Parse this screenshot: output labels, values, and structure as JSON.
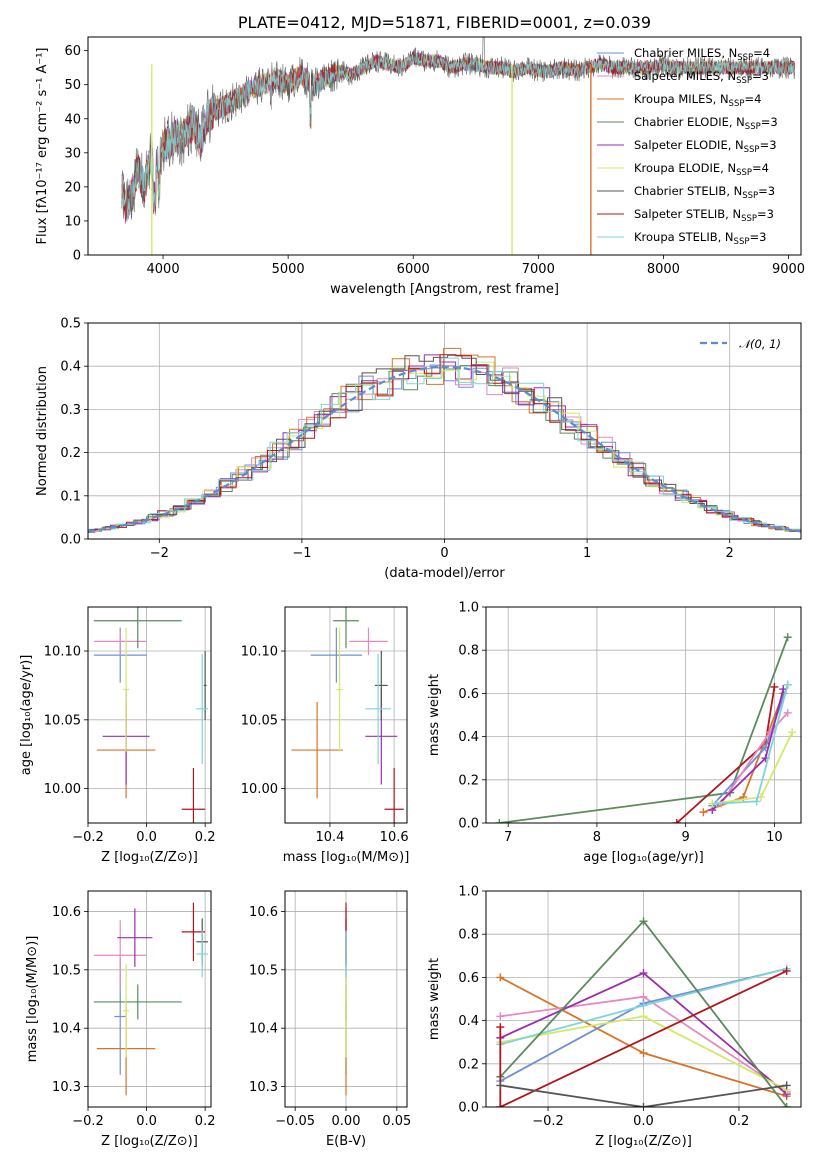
{
  "colors": {
    "Chabrier MILES": "#6f8fd8",
    "Salpeter MILES": "#e58ac0",
    "Kroupa MILES": "#d9732a",
    "Chabrier ELODIE": "#5b8a5c",
    "Salpeter ELODIE": "#9a2db0",
    "Kroupa ELODIE": "#d4e86a",
    "Chabrier STELIB": "#555555",
    "Salpeter STELIB": "#b3151c",
    "Kroupa STELIB": "#7fd4d8"
  },
  "model_order": [
    "Chabrier MILES",
    "Salpeter MILES",
    "Kroupa MILES",
    "Chabrier ELODIE",
    "Salpeter ELODIE",
    "Kroupa ELODIE",
    "Chabrier STELIB",
    "Salpeter STELIB",
    "Kroupa STELIB"
  ],
  "chart_data": [
    {
      "id": "spectrum",
      "type": "line",
      "title": "PLATE=0412, MJD=51871, FIBERID=0001, z=0.039",
      "xlabel": "wavelength [Angstrom, rest frame]",
      "ylabel": "Flux [fλ10⁻¹⁷ erg cm⁻² s⁻¹ A⁻¹]",
      "xlim": [
        3400,
        9100
      ],
      "ylim": [
        0,
        64
      ],
      "xticks": [
        "4000",
        "5000",
        "6000",
        "7000",
        "8000",
        "9000"
      ],
      "yticks": [
        "0",
        "10",
        "20",
        "30",
        "40",
        "50",
        "60"
      ],
      "legend": [
        {
          "label": "Chabrier MILES, N",
          "sub": "SSP",
          "end": "=4",
          "model": "Chabrier MILES"
        },
        {
          "label": "Salpeter MILES, N",
          "sub": "SSP",
          "end": "=3",
          "model": "Salpeter MILES"
        },
        {
          "label": "Kroupa MILES, N",
          "sub": "SSP",
          "end": "=4",
          "model": "Kroupa MILES"
        },
        {
          "label": "Chabrier ELODIE, N",
          "sub": "SSP",
          "end": "=3",
          "model": "Chabrier ELODIE"
        },
        {
          "label": "Salpeter ELODIE, N",
          "sub": "SSP",
          "end": "=3",
          "model": "Salpeter ELODIE"
        },
        {
          "label": "Kroupa ELODIE, N",
          "sub": "SSP",
          "end": "=4",
          "model": "Kroupa ELODIE"
        },
        {
          "label": "Chabrier STELIB, N",
          "sub": "SSP",
          "end": "=3",
          "model": "Chabrier STELIB"
        },
        {
          "label": "Salpeter STELIB, N",
          "sub": "SSP",
          "end": "=3",
          "model": "Salpeter STELIB"
        },
        {
          "label": "Kroupa STELIB, N",
          "sub": "SSP",
          "end": "=3",
          "model": "Kroupa STELIB"
        }
      ],
      "series_shape": {
        "x": [
          3670,
          3700,
          3750,
          3800,
          3850,
          3900,
          3950,
          4000,
          4050,
          4100,
          4150,
          4200,
          4250,
          4300,
          4350,
          4400,
          4500,
          4600,
          4700,
          4800,
          4900,
          5000,
          5100,
          5200,
          5300,
          5400,
          5500,
          5600,
          5700,
          5800,
          5900,
          6000,
          6100,
          6200,
          6300,
          6400,
          6500,
          6600,
          6700,
          6800,
          6900,
          7000,
          7100,
          7200,
          7300,
          7400,
          7500,
          7600,
          7700,
          7800,
          7900,
          8000,
          8100,
          8200,
          8300,
          8400,
          8500,
          8600,
          8700,
          8800,
          8900,
          9050
        ],
        "y": [
          22,
          14,
          18,
          25,
          20,
          28,
          26,
          32,
          33,
          35,
          34,
          37,
          38,
          33,
          40,
          42,
          44,
          46,
          49,
          50,
          52,
          50,
          53,
          50,
          52,
          54,
          53,
          55,
          57,
          56,
          55,
          58,
          57,
          57,
          55,
          56,
          56,
          55,
          55,
          54,
          55,
          54,
          54,
          55,
          54,
          55,
          56,
          55,
          55,
          55,
          55,
          56,
          55,
          55,
          55,
          55,
          55,
          55,
          55,
          55,
          55,
          55
        ]
      },
      "drop_lines": [
        {
          "model": "Kroupa ELODIE",
          "x": 3910
        },
        {
          "model": "Kroupa ELODIE",
          "x": 6790
        },
        {
          "model": "Kroupa MILES",
          "x": 7420
        }
      ]
    },
    {
      "id": "residuals",
      "type": "histogram",
      "xlabel": "(data-model)/error",
      "ylabel": "Normed distribution",
      "xlim": [
        -2.5,
        2.5
      ],
      "ylim": [
        0,
        0.5
      ],
      "xticks": [
        "−2",
        "−1",
        "0",
        "1",
        "2"
      ],
      "yticks": [
        "0.0",
        "0.1",
        "0.2",
        "0.3",
        "0.4",
        "0.5"
      ],
      "legend": "𝒩(0, 1)",
      "legend_color": "#5b8bd0"
    },
    {
      "id": "age_vs_Z",
      "type": "scatter",
      "xlabel": "Z [log₁₀(Z/Z⊙)]",
      "ylabel": "age  [log₁₀(age/yr)]",
      "xlim": [
        -0.2,
        0.22
      ],
      "ylim": [
        9.975,
        10.132
      ],
      "xticks": [
        "−0.2",
        "0.0",
        "0.2"
      ],
      "yticks": [
        "10.00",
        "10.05",
        "10.10"
      ],
      "points": [
        {
          "model": "Chabrier MILES",
          "x": -0.09,
          "y": 10.097,
          "xerr": 0.09,
          "yerr": 0.02
        },
        {
          "model": "Salpeter MILES",
          "x": -0.09,
          "y": 10.107,
          "xerr": 0.09,
          "yerr": 0.01
        },
        {
          "model": "Kroupa MILES",
          "x": -0.07,
          "y": 10.028,
          "xerr": 0.1,
          "yerr": 0.035
        },
        {
          "model": "Chabrier ELODIE",
          "x": -0.03,
          "y": 10.122,
          "xerr": 0.15,
          "yerr": 0.02
        },
        {
          "model": "Salpeter ELODIE",
          "x": -0.07,
          "y": 10.038,
          "xerr": 0.08,
          "yerr": 0.035
        },
        {
          "model": "Kroupa ELODIE",
          "x": -0.07,
          "y": 10.072,
          "xerr": 0.01,
          "yerr": 0.045
        },
        {
          "model": "Chabrier STELIB",
          "x": 0.2,
          "y": 10.075,
          "xerr": 0.005,
          "yerr": 0.025
        },
        {
          "model": "Salpeter STELIB",
          "x": 0.16,
          "y": 9.985,
          "xerr": 0.04,
          "yerr": 0.03
        },
        {
          "model": "Kroupa STELIB",
          "x": 0.19,
          "y": 10.058,
          "xerr": 0.02,
          "yerr": 0.04
        }
      ]
    },
    {
      "id": "age_vs_mass",
      "type": "scatter",
      "xlabel": "mass [log₁₀(M/M⊙)]",
      "ylabel": "",
      "xlim": [
        10.26,
        10.64
      ],
      "ylim": [
        9.975,
        10.132
      ],
      "xticks": [
        "10.4",
        "10.6"
      ],
      "yticks": [
        "10.00",
        "10.05",
        "10.10"
      ],
      "points": [
        {
          "model": "Chabrier MILES",
          "x": 10.42,
          "y": 10.097,
          "xerr": 0.08,
          "yerr": 0.02
        },
        {
          "model": "Salpeter MILES",
          "x": 10.52,
          "y": 10.107,
          "xerr": 0.06,
          "yerr": 0.01
        },
        {
          "model": "Kroupa MILES",
          "x": 10.36,
          "y": 10.028,
          "xerr": 0.08,
          "yerr": 0.035
        },
        {
          "model": "Chabrier ELODIE",
          "x": 10.45,
          "y": 10.122,
          "xerr": 0.04,
          "yerr": 0.02
        },
        {
          "model": "Salpeter ELODIE",
          "x": 10.56,
          "y": 10.038,
          "xerr": 0.05,
          "yerr": 0.035
        },
        {
          "model": "Kroupa ELODIE",
          "x": 10.43,
          "y": 10.072,
          "xerr": 0.01,
          "yerr": 0.045
        },
        {
          "model": "Chabrier STELIB",
          "x": 10.56,
          "y": 10.075,
          "xerr": 0.02,
          "yerr": 0.025
        },
        {
          "model": "Salpeter STELIB",
          "x": 10.6,
          "y": 9.985,
          "xerr": 0.03,
          "yerr": 0.03
        },
        {
          "model": "Kroupa STELIB",
          "x": 10.55,
          "y": 10.058,
          "xerr": 0.04,
          "yerr": 0.04
        }
      ]
    },
    {
      "id": "weight_vs_age",
      "type": "line",
      "xlabel": "age  [log₁₀(age/yr)]",
      "ylabel": "mass weight",
      "xlim": [
        6.75,
        10.3
      ],
      "ylim": [
        0,
        1
      ],
      "xticks": [
        "7",
        "8",
        "9",
        "10"
      ],
      "yticks": [
        "0.0",
        "0.2",
        "0.4",
        "0.6",
        "0.8",
        "1.0"
      ],
      "series": [
        {
          "model": "Chabrier ELODIE",
          "x": [
            6.9,
            9.5,
            10.15
          ],
          "y": [
            0.0,
            0.14,
            0.86
          ]
        },
        {
          "model": "Salpeter STELIB",
          "x": [
            8.9,
            9.9,
            10.0
          ],
          "y": [
            0.0,
            0.37,
            0.63
          ]
        },
        {
          "model": "Kroupa MILES",
          "x": [
            9.2,
            9.65,
            10.1
          ],
          "y": [
            0.05,
            0.12,
            0.6
          ]
        },
        {
          "model": "Chabrier MILES",
          "x": [
            9.3,
            9.9,
            10.15
          ],
          "y": [
            0.08,
            0.35,
            0.64
          ]
        },
        {
          "model": "Salpeter MILES",
          "x": [
            9.4,
            9.95,
            10.15
          ],
          "y": [
            0.09,
            0.42,
            0.51
          ]
        },
        {
          "model": "Salpeter ELODIE",
          "x": [
            9.3,
            9.9,
            10.1
          ],
          "y": [
            0.06,
            0.3,
            0.62
          ]
        },
        {
          "model": "Kroupa ELODIE",
          "x": [
            9.3,
            9.85,
            10.2
          ],
          "y": [
            0.09,
            0.12,
            0.42
          ]
        },
        {
          "model": "Kroupa STELIB",
          "x": [
            9.35,
            9.8,
            10.15
          ],
          "y": [
            0.09,
            0.1,
            0.64
          ]
        }
      ]
    },
    {
      "id": "mass_vs_Z",
      "type": "scatter",
      "xlabel": "Z [log₁₀(Z/Z⊙)]",
      "ylabel": "mass [log₁₀(M/M⊙)]",
      "xlim": [
        -0.2,
        0.22
      ],
      "ylim": [
        10.265,
        10.635
      ],
      "xticks": [
        "−0.2",
        "0.0",
        "0.2"
      ],
      "yticks": [
        "10.3",
        "10.4",
        "10.5",
        "10.6"
      ],
      "points": [
        {
          "model": "Chabrier MILES",
          "x": -0.09,
          "y": 10.42,
          "xerr": 0.02,
          "yerr": 0.1
        },
        {
          "model": "Salpeter MILES",
          "x": -0.09,
          "y": 10.525,
          "xerr": 0.09,
          "yerr": 0.06
        },
        {
          "model": "Kroupa MILES",
          "x": -0.07,
          "y": 10.365,
          "xerr": 0.1,
          "yerr": 0.08
        },
        {
          "model": "Chabrier ELODIE",
          "x": -0.03,
          "y": 10.445,
          "xerr": 0.15,
          "yerr": 0.03
        },
        {
          "model": "Salpeter ELODIE",
          "x": -0.04,
          "y": 10.555,
          "xerr": 0.06,
          "yerr": 0.05
        },
        {
          "model": "Kroupa ELODIE",
          "x": -0.07,
          "y": 10.43,
          "xerr": 0.01,
          "yerr": 0.08
        },
        {
          "model": "Chabrier STELIB",
          "x": 0.19,
          "y": 10.548,
          "xerr": 0.02,
          "yerr": 0.04
        },
        {
          "model": "Salpeter STELIB",
          "x": 0.16,
          "y": 10.565,
          "xerr": 0.04,
          "yerr": 0.05
        },
        {
          "model": "Kroupa STELIB",
          "x": 0.19,
          "y": 10.527,
          "xerr": 0.02,
          "yerr": 0.04
        }
      ]
    },
    {
      "id": "mass_vs_EBV",
      "type": "scatter",
      "xlabel": "E(B-V)",
      "ylabel": "",
      "xlim": [
        -0.06,
        0.06
      ],
      "ylim": [
        10.265,
        10.635
      ],
      "xticks": [
        "−0.05",
        "0.00",
        "0.05"
      ],
      "yticks": [
        "10.3",
        "10.4",
        "10.5",
        "10.6"
      ],
      "points": [
        {
          "model": "Chabrier MILES",
          "x": 0.0,
          "y": 10.42,
          "xerr": 0.0,
          "yerr": 0.1
        },
        {
          "model": "Salpeter MILES",
          "x": 0.0,
          "y": 10.525,
          "xerr": 0.0,
          "yerr": 0.06
        },
        {
          "model": "Kroupa MILES",
          "x": 0.0,
          "y": 10.365,
          "xerr": 0.0,
          "yerr": 0.08
        },
        {
          "model": "Chabrier ELODIE",
          "x": 0.0,
          "y": 10.445,
          "xerr": 0.0,
          "yerr": 0.03
        },
        {
          "model": "Salpeter ELODIE",
          "x": 0.0,
          "y": 10.555,
          "xerr": 0.0,
          "yerr": 0.05
        },
        {
          "model": "Kroupa ELODIE",
          "x": 0.0,
          "y": 10.43,
          "xerr": 0.0,
          "yerr": 0.08
        },
        {
          "model": "Chabrier STELIB",
          "x": 0.0,
          "y": 10.548,
          "xerr": 0.0,
          "yerr": 0.04
        },
        {
          "model": "Salpeter STELIB",
          "x": 0.0,
          "y": 10.565,
          "xerr": 0.0,
          "yerr": 0.05
        },
        {
          "model": "Kroupa STELIB",
          "x": 0.0,
          "y": 10.527,
          "xerr": 0.0,
          "yerr": 0.04
        }
      ]
    },
    {
      "id": "weight_vs_Z",
      "type": "line",
      "xlabel": "Z [log₁₀(Z/Z⊙)]",
      "ylabel": "mass weight",
      "xlim": [
        -0.33,
        0.33
      ],
      "ylim": [
        0,
        1
      ],
      "xticks": [
        "−0.2",
        "0.0",
        "0.2"
      ],
      "yticks": [
        "0.0",
        "0.2",
        "0.4",
        "0.6",
        "0.8",
        "1.0"
      ],
      "series": [
        {
          "model": "Kroupa MILES",
          "x": [
            -0.3,
            0.0,
            0.3
          ],
          "y": [
            0.6,
            0.25,
            0.05
          ]
        },
        {
          "model": "Salpeter MILES",
          "x": [
            -0.3,
            0.0,
            0.3
          ],
          "y": [
            0.42,
            0.51,
            0.07
          ]
        },
        {
          "model": "Salpeter ELODIE",
          "x": [
            -0.3,
            0.0,
            0.3
          ],
          "y": [
            0.32,
            0.62,
            0.06
          ]
        },
        {
          "model": "Chabrier MILES",
          "x": [
            -0.3,
            0.0,
            0.3
          ],
          "y": [
            0.12,
            0.48,
            0.64
          ]
        },
        {
          "model": "Kroupa ELODIE",
          "x": [
            -0.3,
            0.0,
            0.3
          ],
          "y": [
            0.3,
            0.42,
            0.08
          ]
        },
        {
          "model": "Kroupa STELIB",
          "x": [
            -0.3,
            0.0,
            0.3
          ],
          "y": [
            0.29,
            0.47,
            0.64
          ]
        },
        {
          "model": "Chabrier ELODIE",
          "x": [
            -0.3,
            0.0,
            0.3
          ],
          "y": [
            0.14,
            0.86,
            0.0
          ]
        },
        {
          "model": "Salpeter STELIB",
          "x": [
            -0.3,
            -0.3,
            0.3
          ],
          "y": [
            0.37,
            0.0,
            0.63
          ]
        },
        {
          "model": "Chabrier STELIB",
          "x": [
            -0.3,
            0.0,
            0.3
          ],
          "y": [
            0.1,
            0.0,
            0.1
          ]
        }
      ]
    }
  ]
}
